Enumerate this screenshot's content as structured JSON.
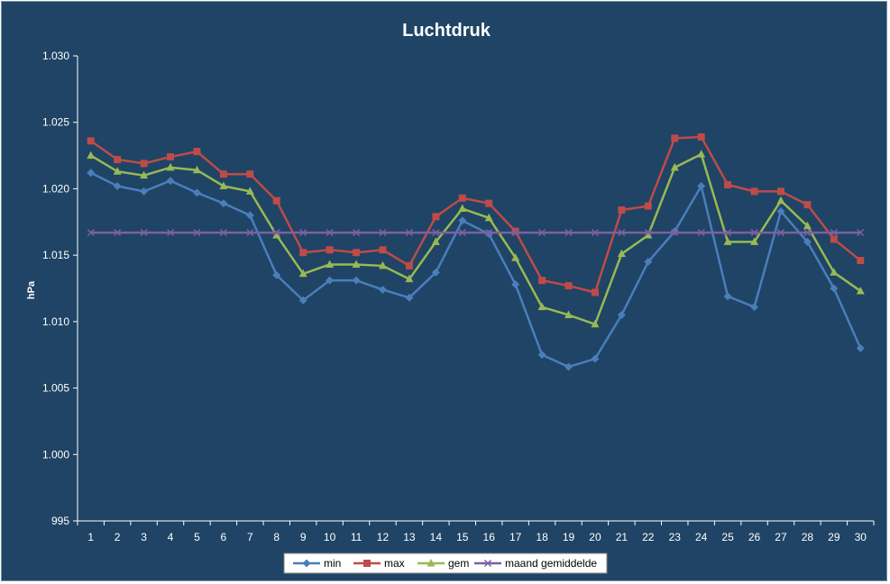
{
  "chart_data": {
    "type": "line",
    "title": "Luchtdruk",
    "xlabel": "",
    "ylabel": "hPa",
    "ylim": [
      995,
      1030
    ],
    "y_ticks": [
      "995",
      "1.000",
      "1.005",
      "1.010",
      "1.015",
      "1.020",
      "1.025",
      "1.030"
    ],
    "y_tick_values": [
      995,
      1000,
      1005,
      1010,
      1015,
      1020,
      1025,
      1030
    ],
    "categories": [
      "1",
      "2",
      "3",
      "4",
      "5",
      "6",
      "7",
      "8",
      "9",
      "10",
      "11",
      "12",
      "13",
      "14",
      "15",
      "16",
      "17",
      "18",
      "19",
      "20",
      "21",
      "22",
      "23",
      "24",
      "25",
      "26",
      "27",
      "28",
      "29",
      "30"
    ],
    "grid": false,
    "legend_position": "bottom",
    "series": [
      {
        "name": "min",
        "color": "#4a7ebb",
        "marker": "diamond",
        "values": [
          1021.2,
          1020.2,
          1019.8,
          1020.6,
          1019.7,
          1018.9,
          1018.0,
          1013.5,
          1011.6,
          1013.1,
          1013.1,
          1012.4,
          1011.8,
          1013.7,
          1017.6,
          1016.6,
          1012.8,
          1007.5,
          1006.6,
          1007.2,
          1010.5,
          1014.5,
          1016.8,
          1020.2,
          1011.9,
          1011.1,
          1018.3,
          1016.0,
          1012.5,
          1008.0
        ]
      },
      {
        "name": "max",
        "color": "#be4b48",
        "marker": "square",
        "values": [
          1023.6,
          1022.2,
          1021.9,
          1022.4,
          1022.8,
          1021.1,
          1021.1,
          1019.1,
          1015.2,
          1015.4,
          1015.2,
          1015.4,
          1014.2,
          1017.9,
          1019.3,
          1018.9,
          1016.8,
          1013.1,
          1012.7,
          1012.2,
          1018.4,
          1018.7,
          1023.8,
          1023.9,
          1020.3,
          1019.8,
          1019.8,
          1018.8,
          1016.2,
          1014.6
        ]
      },
      {
        "name": "gem",
        "color": "#98b954",
        "marker": "triangle",
        "values": [
          1022.5,
          1021.3,
          1021.0,
          1021.6,
          1021.4,
          1020.2,
          1019.8,
          1016.5,
          1013.6,
          1014.3,
          1014.3,
          1014.2,
          1013.2,
          1016.0,
          1018.5,
          1017.8,
          1014.8,
          1011.1,
          1010.5,
          1009.8,
          1015.1,
          1016.5,
          1021.6,
          1022.6,
          1016.0,
          1016.0,
          1019.1,
          1017.2,
          1013.7,
          1012.3
        ]
      },
      {
        "name": "maand gemiddelde",
        "color": "#7d60a0",
        "marker": "x",
        "values": [
          1016.7,
          1016.7,
          1016.7,
          1016.7,
          1016.7,
          1016.7,
          1016.7,
          1016.7,
          1016.7,
          1016.7,
          1016.7,
          1016.7,
          1016.7,
          1016.7,
          1016.7,
          1016.7,
          1016.7,
          1016.7,
          1016.7,
          1016.7,
          1016.7,
          1016.7,
          1016.7,
          1016.7,
          1016.7,
          1016.7,
          1016.7,
          1016.7,
          1016.7,
          1016.7
        ]
      }
    ]
  },
  "colors": {
    "background": "#1f4465",
    "axis": "#ffffff",
    "legend_bg": "#ffffff"
  }
}
